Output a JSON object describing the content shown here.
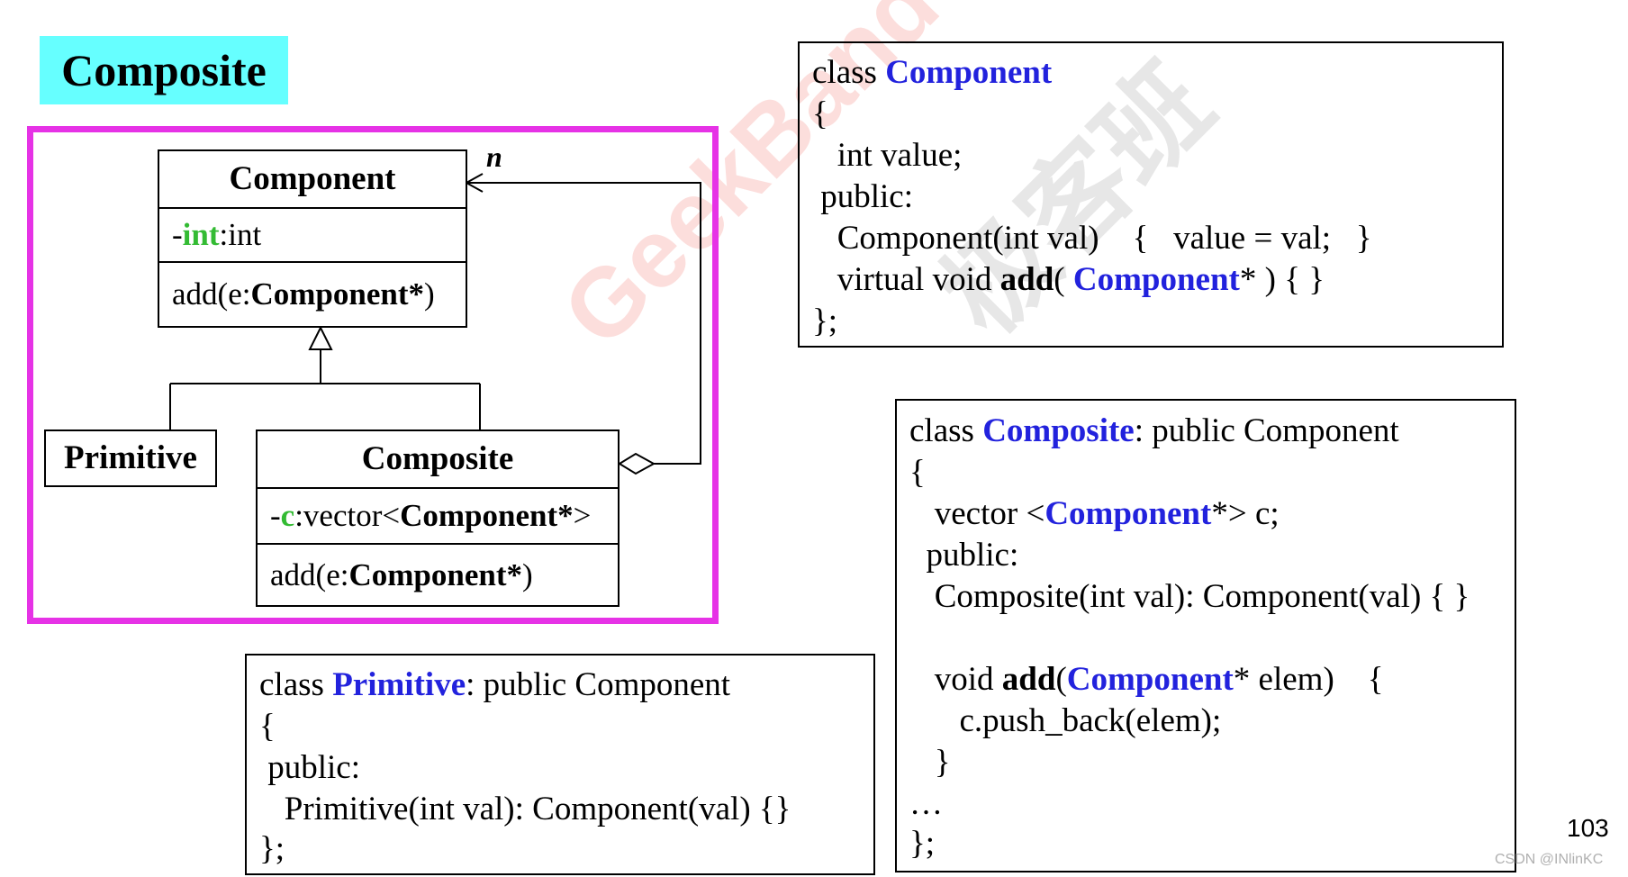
{
  "title": "Composite",
  "uml": {
    "multiplicity": "n",
    "component": {
      "name": "Component",
      "attr": {
        "prefix": "-",
        "name": "int",
        "type": ":int"
      },
      "op": {
        "prefix": "add(e:",
        "type": "Component*",
        "suffix": ")"
      }
    },
    "primitive": {
      "name": "Primitive"
    },
    "composite": {
      "name": "Composite",
      "attr": {
        "prefix": "-",
        "name": "c",
        "type_pre": ":vector<",
        "type": "Component*",
        "suffix": ">"
      },
      "op": {
        "prefix": "add(e:",
        "type": "Component*",
        "suffix": ")"
      }
    }
  },
  "code_component": {
    "l1_kw": "class ",
    "l1_name": "Component",
    "l2": "{",
    "l3": "   int value;",
    "l4": " public:",
    "l5": "   Component(int val)    {   value = val;   }",
    "l6_a": "   virtual void ",
    "l6_b": "add",
    "l6_c": "( ",
    "l6_d": "Component",
    "l6_e": "* ) { }",
    "l7": "};"
  },
  "code_composite": {
    "l1_kw": "class ",
    "l1_name": "Composite",
    "l1_rest": ": public Component",
    "l2": "{",
    "l3_a": "   vector <",
    "l3_b": "Component",
    "l3_c": "*> c;",
    "l4": "  public:",
    "l5": "   Composite(int val): Component(val) { }",
    "l6_a": "   void ",
    "l6_b": "add",
    "l6_c": "(",
    "l6_d": "Component",
    "l6_e": "* elem)    {",
    "l7": "      c.push_back(elem);",
    "l8": "   }",
    "l9": "…",
    "l10": "};"
  },
  "code_primitive": {
    "l1_kw": "class ",
    "l1_name": "Primitive",
    "l1_rest": ": public Component",
    "l2": "{",
    "l3": " public:",
    "l4": "   Primitive(int val): Component(val) {}",
    "l5": "};"
  },
  "watermark": "GeekBand",
  "watermark_cn": "极客班",
  "page_number": "103",
  "credit": "CSDN @INlinKC"
}
